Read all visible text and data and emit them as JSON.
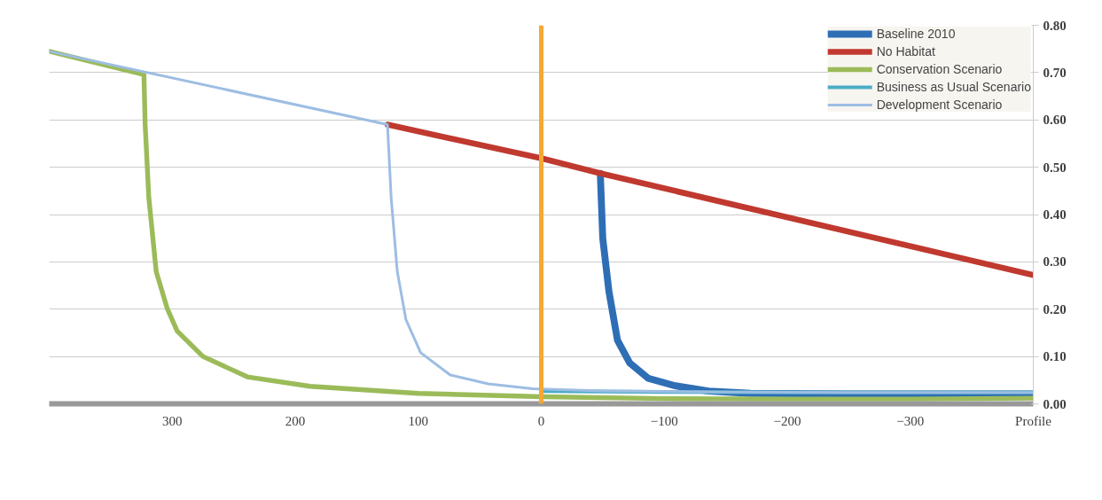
{
  "chart_data": {
    "type": "line",
    "series": [
      {
        "name": "Baseline 2010",
        "color": "#2e6eb5",
        "x": [
          -48,
          -50,
          -55,
          -62,
          -72,
          -87,
          -109,
          -136,
          -170,
          -250,
          -330,
          -400
        ],
        "values": [
          0.487,
          0.35,
          0.238,
          0.134,
          0.086,
          0.054,
          0.038,
          0.027,
          0.022,
          0.021,
          0.021,
          0.021
        ]
      },
      {
        "name": "No Habitat",
        "color": "#c0392f",
        "x": [
          125,
          0,
          -48,
          -400
        ],
        "values": [
          0.59,
          0.519,
          0.487,
          0.272
        ]
      },
      {
        "name": "Conservation Scenario",
        "color": "#9bbb59",
        "x": [
          400,
          323,
          322,
          319,
          313,
          304,
          296,
          275,
          239,
          188,
          100,
          0,
          -100,
          -200,
          -300,
          -400
        ],
        "values": [
          0.745,
          0.696,
          0.59,
          0.435,
          0.279,
          0.201,
          0.154,
          0.1,
          0.057,
          0.037,
          0.022,
          0.015,
          0.011,
          0.01,
          0.01,
          0.012
        ]
      },
      {
        "name": "Business as Usual Scenario",
        "color": "#4bacc6",
        "x": [
          0,
          -100,
          -200,
          -300,
          -400
        ],
        "values": [
          0.027,
          0.025,
          0.024,
          0.024,
          0.024
        ]
      },
      {
        "name": "Development Scenario",
        "color": "#9dbde3",
        "x": [
          400,
          125,
          122,
          117,
          110,
          98,
          74,
          43,
          7,
          -50,
          -150,
          -250,
          -400
        ],
        "values": [
          0.745,
          0.59,
          0.435,
          0.279,
          0.178,
          0.108,
          0.061,
          0.042,
          0.032,
          0.027,
          0.025,
          0.024,
          0.024
        ]
      }
    ],
    "xlim": [
      400,
      -400
    ],
    "xticks": [
      300,
      200,
      100,
      0,
      -100,
      -200,
      -300,
      {
        "value": -400,
        "label": "Profile"
      }
    ],
    "ylim": [
      0,
      0.8
    ],
    "yticks": [
      {
        "value": 0,
        "label": "0.00"
      },
      {
        "value": 0.1,
        "label": "0.10"
      },
      {
        "value": 0.2,
        "label": "0.20"
      },
      {
        "value": 0.3,
        "label": "0.30"
      },
      {
        "value": 0.4,
        "label": "0.40"
      },
      {
        "value": 0.5,
        "label": "0.50"
      },
      {
        "value": 0.6,
        "label": "0.60"
      },
      {
        "value": 0.7,
        "label": "0.70"
      },
      {
        "value": 0.8,
        "label": "0.80"
      }
    ],
    "grid": "y",
    "legend": "top right",
    "ref_lines": [
      {
        "axis": "x",
        "value": 0,
        "color": "#f5a833"
      }
    ]
  }
}
